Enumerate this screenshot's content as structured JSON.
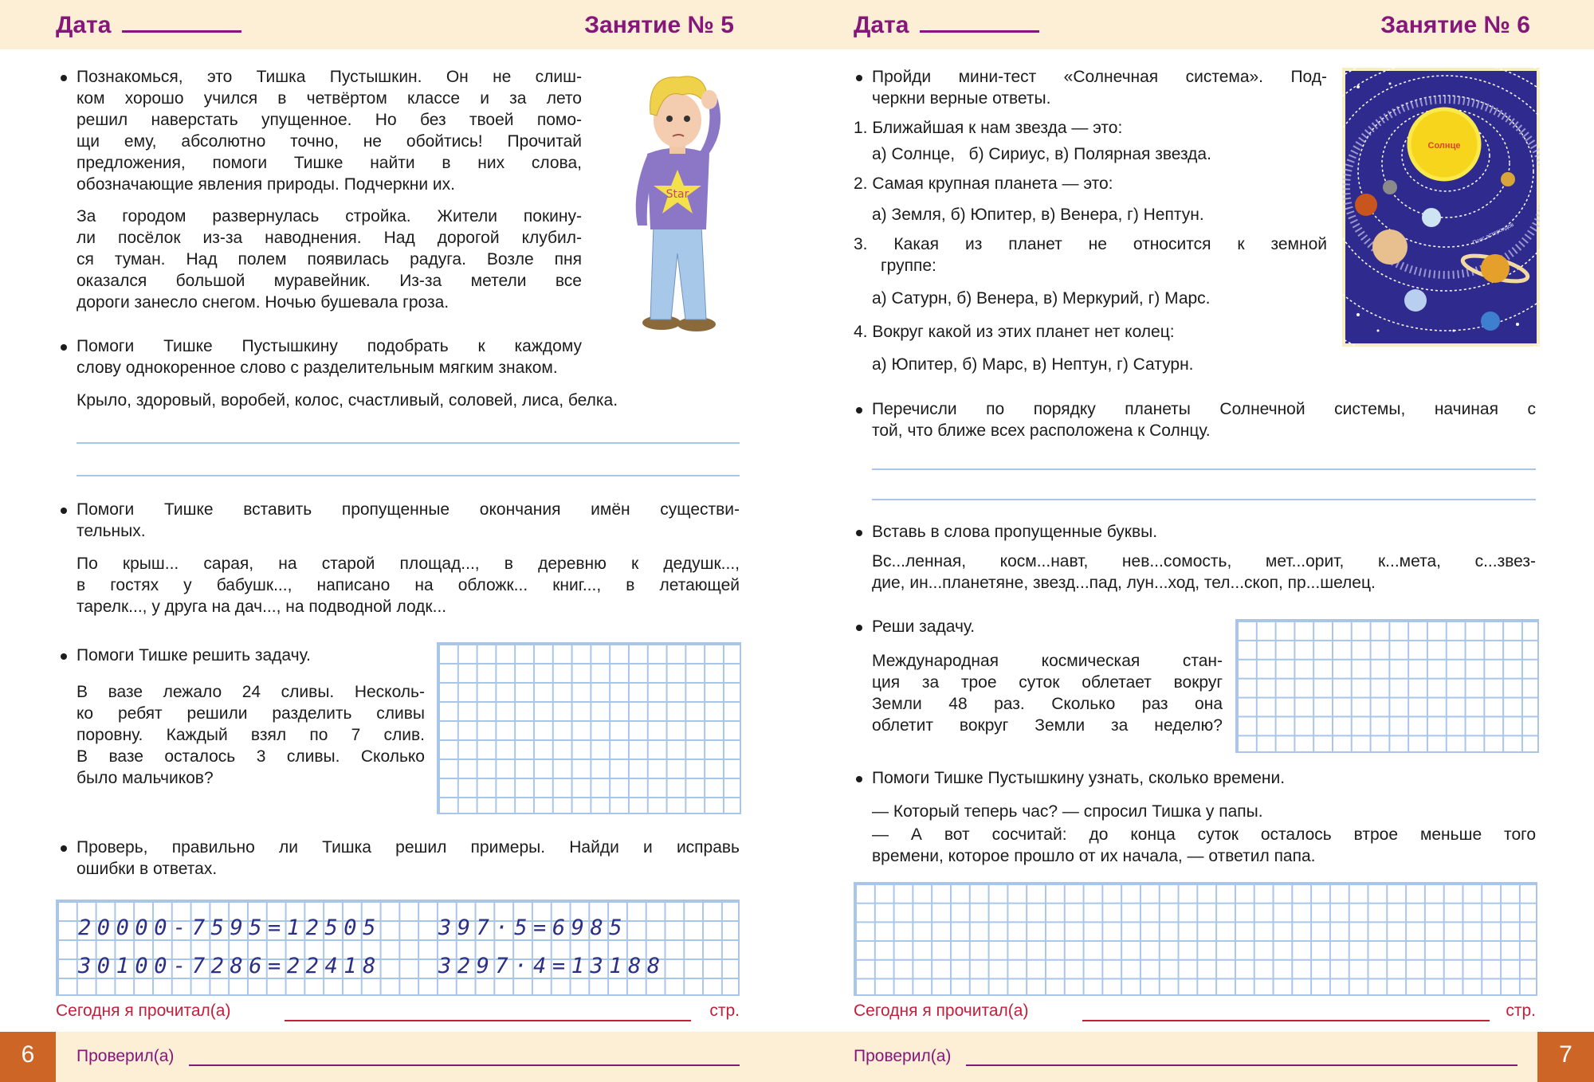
{
  "colors": {
    "header_bg": "#fcefd6",
    "title": "#86177a",
    "red": "#c21f3c",
    "grid": "#a9c6e8",
    "page_number_bg": "#cd6526",
    "handwriting": "#2c2f86"
  },
  "left": {
    "date_label": "Дата",
    "lesson_title": "Занятие № 5",
    "p1": [
      "Познакомься, это Тишка Пустышкин. Он не слиш-",
      "ком хорошо учился в четвёртом классе и за лето",
      "решил наверстать упущенное. Но без твоей помо-",
      "щи ему, абсолютно точно, не обойтись! Прочитай",
      "предложения, помоги Тишке найти в них слова,",
      "обозначающие явления природы. Подчеркни их."
    ],
    "p2": [
      "За городом развернулась стройка. Жители покину-",
      "ли посёлок из-за наводнения. Над дорогой клубил-",
      "ся туман. Над полем появилась радуга. Возле пня",
      "оказался большой муравейник. Из-за метели все",
      "дороги занесло снегом. Ночью бушевала гроза."
    ],
    "p3": [
      "Помоги Тишке Пустышкину подобрать к каждому",
      "слову однокоренное слово с разделительным мягким знаком."
    ],
    "p4": [
      "Крыло, здоровый, воробей, колос, счастливый, соловей, лиса, белка."
    ],
    "p5": [
      "Помоги Тишке вставить пропущенные окончания имён существи-",
      "тельных."
    ],
    "p6": [
      "По крыш... сарая, на старой площад..., в деревню к дедушк...,",
      "в гостях у бабушк..., написано на обложк... книг..., в летающей",
      "тарелк..., у друга на дач..., на подводной лодк..."
    ],
    "p7": [
      "Помоги Тишке решить задачу."
    ],
    "p8": [
      "В вазе лежало 24 сливы. Несколь-",
      "ко ребят решили разделить сливы",
      "поровну. Каждый взял по 7 слив.",
      "В вазе осталось 3 сливы. Сколько",
      "было мальчиков?"
    ],
    "p9": [
      "Проверь, правильно ли Тишка решил примеры. Найди и исправь",
      "ошибки в ответах."
    ],
    "equations": [
      "20000-7595=12505",
      "397·5=6985",
      "30100-7286=22418",
      "3297·4=13188"
    ],
    "read_label": "Сегодня я прочитал(а)",
    "pages_label": "стр.",
    "checked_label": "Проверил(а)",
    "page_number": "6",
    "boy_shirt_text": "Star"
  },
  "right": {
    "date_label": "Дата",
    "lesson_title": "Занятие № 6",
    "q_intro": [
      "Пройди мини-тест «Солнечная система». Под-",
      "черкни верные ответы."
    ],
    "q1": "1. Ближайшая к нам звезда — это:",
    "q1a": "а) Солнце,   б) Сириус, в) Полярная звезда.",
    "q2": "2. Самая крупная планета — это:",
    "q2a": "а) Земля, б) Юпитер, в) Венера, г) Нептун.",
    "q3": [
      "3. Какая из планет не относится к земной"
    ],
    "q3b": "группе:",
    "q3a": "а) Сатурн, б) Венера, в) Меркурий, г) Марс.",
    "q4": "4. Вокруг какой из этих планет нет колец:",
    "q4a": "а) Юпитер, б) Марс, в) Нептун, г) Сатурн.",
    "p_planets": [
      "Перечисли по порядку планеты Солнечной системы, начиная с",
      "той, что ближе всех расположена к Солнцу."
    ],
    "p_letters_title": [
      "Вставь в слова пропущенные буквы."
    ],
    "p_letters": [
      "Вс...ленная, косм...навт, нев...сомость, мет...орит, к...мета, с...звез-",
      "дие, ин...планетяне, звезд...пад, лун...ход, тел...скоп, пр...шелец."
    ],
    "p_task_title": [
      "Реши задачу."
    ],
    "p_task": [
      "Международная космическая стан-",
      "ция за трое суток облетает вокруг",
      "Земли 48 раз. Сколько раз она",
      "облетит вокруг Земли за неделю?"
    ],
    "p_time_title": [
      "Помоги Тишке Пустышкину узнать, сколько времени."
    ],
    "p_time_1": [
      "— Который теперь час? — спросил Тишка у папы."
    ],
    "p_time_2": [
      "— А вот сосчитай: до конца суток осталось втрое меньше того",
      "времени, которое прошло от их начала, — ответил папа."
    ],
    "sun_label": "Солнце",
    "belt_label": "Пояс астероидов",
    "read_label": "Сегодня я прочитал(а)",
    "pages_label": "стр.",
    "checked_label": "Проверил(а)",
    "page_number": "7"
  }
}
